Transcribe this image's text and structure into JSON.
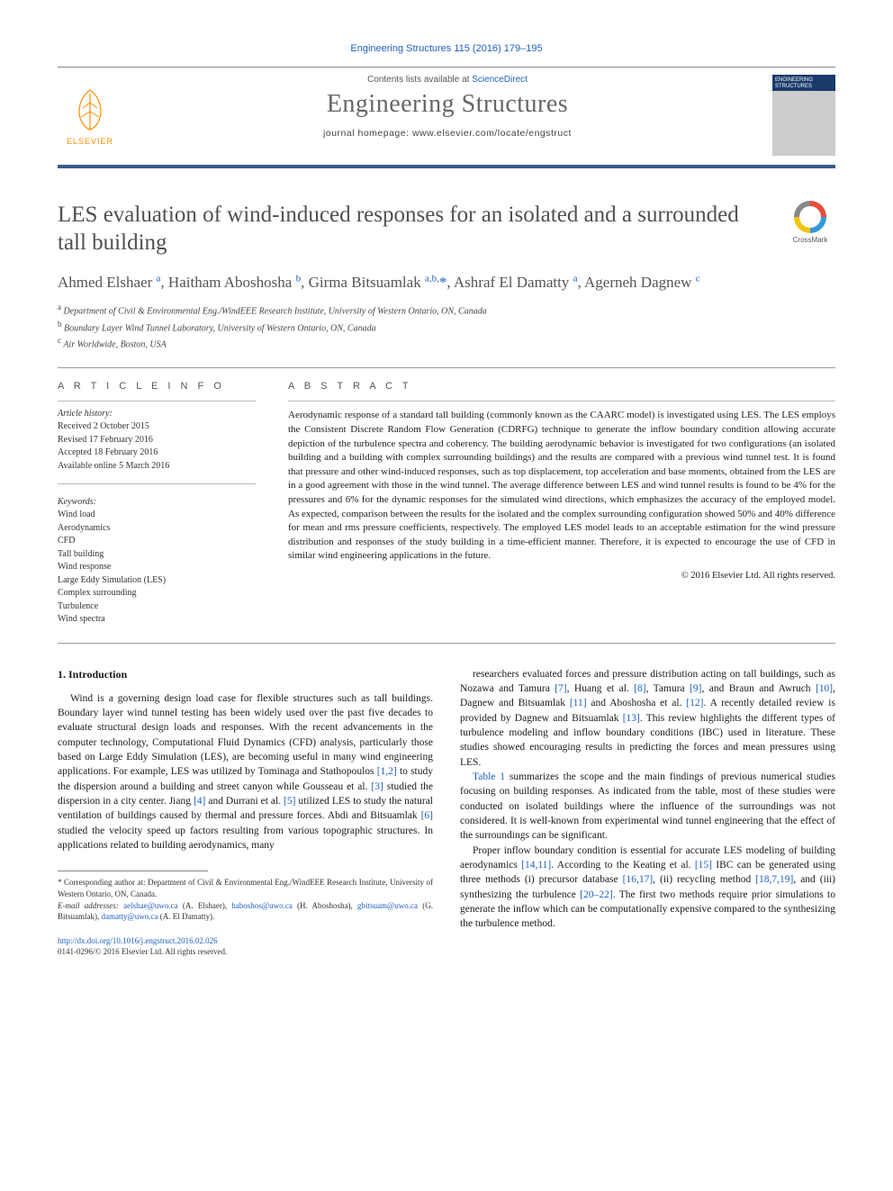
{
  "top_citation": "Engineering Structures 115 (2016) 179–195",
  "header": {
    "contents_prefix": "Contents lists available at ",
    "contents_link": "ScienceDirect",
    "journal": "Engineering Structures",
    "homepage_prefix": "journal homepage: ",
    "homepage": "www.elsevier.com/locate/engstruct",
    "publisher": "ELSEVIER",
    "cover_label": "ENGINEERING STRUCTURES"
  },
  "crossmark": "CrossMark",
  "title": "LES evaluation of wind-induced responses for an isolated and a surrounded tall building",
  "authors_html": "Ahmed Elshaer <sup>a</sup>, Haitham Aboshosha <sup>b</sup>, Girma Bitsuamlak <sup>a,b,</sup><span class='star'>*</span>, Ashraf El Damatty <sup>a</sup>, Agerneh Dagnew <sup>c</sup>",
  "affiliations": {
    "a": "Department of Civil & Environmental Eng./WindEEE Research Institute, University of Western Ontario, ON, Canada",
    "b": "Boundary Layer Wind Tunnel Laboratory, University of Western Ontario, ON, Canada",
    "c": "Air Worldwide, Boston, USA"
  },
  "article_info_head": "A R T I C L E   I N F O",
  "abstract_head": "A B S T R A C T",
  "history_head": "Article history:",
  "history": [
    "Received 2 October 2015",
    "Revised 17 February 2016",
    "Accepted 18 February 2016",
    "Available online 5 March 2016"
  ],
  "keywords_head": "Keywords:",
  "keywords": [
    "Wind load",
    "Aerodynamics",
    "CFD",
    "Tall building",
    "Wind response",
    "Large Eddy Simulation (LES)",
    "Complex surrounding",
    "Turbulence",
    "Wind spectra"
  ],
  "abstract": "Aerodynamic response of a standard tall building (commonly known as the CAARC model) is investigated using LES. The LES employs the Consistent Discrete Random Flow Generation (CDRFG) technique to generate the inflow boundary condition allowing accurate depiction of the turbulence spectra and coherency. The building aerodynamic behavior is investigated for two configurations (an isolated building and a building with complex surrounding buildings) and the results are compared with a previous wind tunnel test. It is found that pressure and other wind-induced responses, such as top displacement, top acceleration and base moments, obtained from the LES are in a good agreement with those in the wind tunnel. The average difference between LES and wind tunnel results is found to be 4% for the pressures and 6% for the dynamic responses for the simulated wind directions, which emphasizes the accuracy of the employed model. As expected, comparison between the results for the isolated and the complex surrounding configuration showed 50% and 40% difference for mean and rms pressure coefficients, respectively. The employed LES model leads to an acceptable estimation for the wind pressure distribution and responses of the study building in a time-efficient manner. Therefore, it is expected to encourage the use of CFD in similar wind engineering applications in the future.",
  "copyright": "© 2016 Elsevier Ltd. All rights reserved.",
  "intro_head": "1. Introduction",
  "col1_p1": "Wind is a governing design load case for flexible structures such as tall buildings. Boundary layer wind tunnel testing has been widely used over the past five decades to evaluate structural design loads and responses. With the recent advancements in the computer technology, Computational Fluid Dynamics (CFD) analysis, particularly those based on Large Eddy Simulation (LES), are becoming useful in many wind engineering applications. For example, LES was utilized by Tominaga and Stathopoulos [1,2] to study the dispersion around a building and street canyon while Gousseau et al. [3] studied the dispersion in a city center. Jiang [4] and Durrani et al. [5] utilized LES to study the natural ventilation of buildings caused by thermal and pressure forces. Abdi and Bitsuamlak [6] studied the velocity speed up factors resulting from various topographic structures. In applications related to building aerodynamics, many",
  "col2_p1": "researchers evaluated forces and pressure distribution acting on tall buildings, such as Nozawa and Tamura [7], Huang et al. [8], Tamura [9], and Braun and Awruch [10], Dagnew and Bitsuamlak [11] and Aboshosha et al. [12]. A recently detailed review is provided by Dagnew and Bitsuamlak [13]. This review highlights the different types of turbulence modeling and inflow boundary conditions (IBC) used in literature. These studies showed encouraging results in predicting the forces and mean pressures using LES.",
  "col2_p2": "Table 1 summarizes the scope and the main findings of previous numerical studies focusing on building responses. As indicated from the table, most of these studies were conducted on isolated buildings where the influence of the surroundings was not considered. It is well-known from experimental wind tunnel engineering that the effect of the surroundings can be significant.",
  "col2_p3": "Proper inflow boundary condition is essential for accurate LES modeling of building aerodynamics [14,11]. According to the Keating et al. [15] IBC can be generated using three methods (i) precursor database [16,17], (ii) recycling method [18,7,19], and (iii) synthesizing the turbulence [20–22]. The first two methods require prior simulations to generate the inflow which can be computationally expensive compared to the synthesizing the turbulence method.",
  "footnote": {
    "corr": "* Corresponding author at: Department of Civil & Environmental Eng./WindEEE Research Institute, University of Western Ontario, ON, Canada.",
    "mail_label": "E-mail addresses:",
    "emails": "aelshae@uwo.ca (A. Elshaer), haboshos@uwo.ca (H. Aboshosha), gbitsuam@uwo.ca (G. Bitsuamlak), damatty@uwo.ca (A. El Damatty)."
  },
  "doi": {
    "url": "http://dx.doi.org/10.1016/j.engstruct.2016.02.026",
    "issn_line": "0141-0296/© 2016 Elsevier Ltd. All rights reserved."
  },
  "colors": {
    "link": "#2060c0",
    "rule": "#3a5a8a",
    "title_gray": "#505050",
    "text": "#1a1a1a"
  }
}
